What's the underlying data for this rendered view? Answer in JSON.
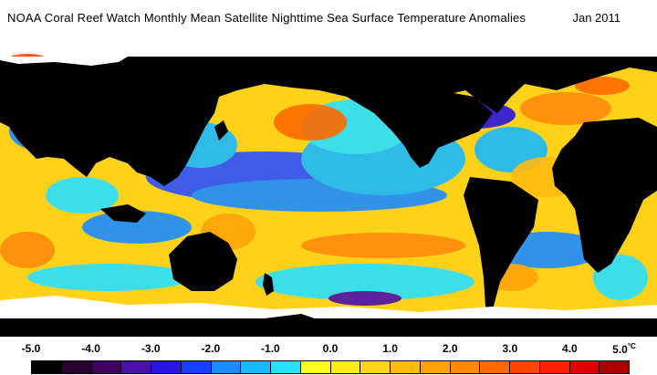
{
  "header": {
    "title": "NOAA Coral Reef Watch Monthly Mean Satellite Nighttime Sea Surface Temperature Anomalies",
    "date": "Jan 2011"
  },
  "legend": {
    "ticks": [
      "-5.0",
      "-4.0",
      "-3.0",
      "-2.0",
      "-1.0",
      "0.0",
      "1.0",
      "2.0",
      "3.0",
      "4.0",
      "5.0"
    ],
    "unit": "°C",
    "unit_prefix": "5.0",
    "colors": [
      "#000000",
      "#2a0033",
      "#3d0060",
      "#4b10a8",
      "#2a14e0",
      "#1440ff",
      "#1a8cff",
      "#1ab8ff",
      "#2ae0ff",
      "#ffff20",
      "#ffec1a",
      "#ffd41a",
      "#ffbc10",
      "#ffa30a",
      "#ff8a0a",
      "#ff6a00",
      "#ff4500",
      "#ff2000",
      "#e00000",
      "#aa0000"
    ]
  },
  "map": {
    "land_color": "#000000",
    "ice_color": "#ffffff",
    "ocean_base_color": "#ffd21a"
  }
}
